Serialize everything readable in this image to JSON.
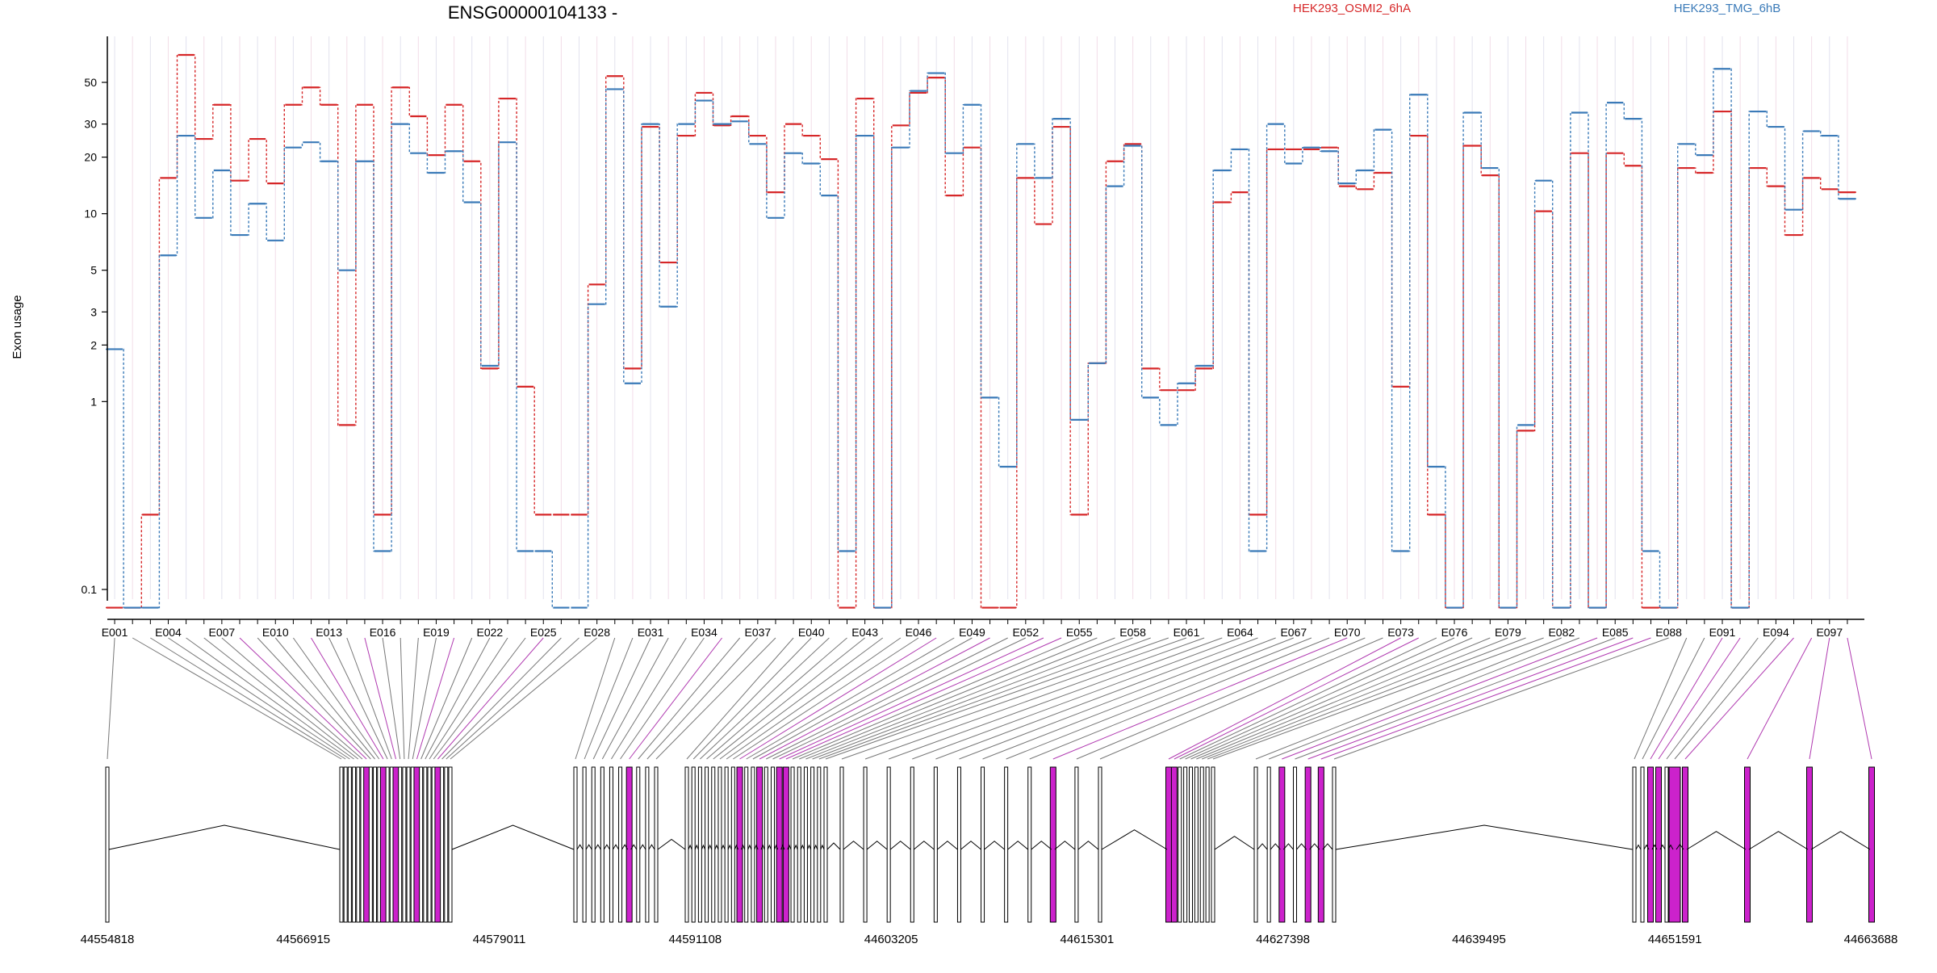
{
  "chart_data": {
    "type": "line",
    "title": "ENSG00000104133 -",
    "ylabel": "Exon usage",
    "yscale": "log",
    "ylim": [
      0.08,
      90
    ],
    "y_ticks": [
      0.1,
      1,
      2,
      3,
      5,
      10,
      20,
      30,
      50
    ],
    "y_tick_labels": [
      "0.1",
      "1",
      "2",
      "3",
      "5",
      "10",
      "20",
      "30",
      "50"
    ],
    "x_tick_labels": [
      "E001",
      "E004",
      "E007",
      "E010",
      "E013",
      "E016",
      "E019",
      "E022",
      "E025",
      "E028",
      "E031",
      "E034",
      "E037",
      "E040",
      "E043",
      "E046",
      "E049",
      "E052",
      "E055",
      "E058",
      "E061",
      "E064",
      "E067",
      "E070",
      "E073",
      "E076",
      "E079",
      "E082",
      "E085",
      "E088",
      "E091",
      "E094",
      "E097"
    ],
    "legend": [
      {
        "name": "HEK293_OSMI2_6hA",
        "color": "#d62728"
      },
      {
        "name": "HEK293_TMG_6hB",
        "color": "#3a7ab8"
      }
    ],
    "series": [
      {
        "name": "HEK293_OSMI2_6hA",
        "color": "#d62728",
        "values": [
          0.08,
          0.08,
          0.25,
          15.5,
          70,
          25,
          38,
          15,
          25,
          14.5,
          38,
          47,
          38,
          0.75,
          38,
          0.25,
          47,
          33,
          20.5,
          38,
          19,
          1.5,
          41,
          1.2,
          0.25,
          0.25,
          0.25,
          4.2,
          54,
          1.5,
          29,
          5.5,
          26,
          44,
          29.5,
          33,
          26,
          13,
          30,
          26,
          19.5,
          0.08,
          41,
          0.08,
          29.5,
          44,
          53,
          12.5,
          22.5,
          0.08,
          0.08,
          15.5,
          8.8,
          29,
          0.25,
          1.6,
          19,
          23.5,
          1.5,
          1.15,
          1.15,
          1.5,
          11.5,
          13,
          0.25,
          22,
          22,
          22,
          22.5,
          14,
          13.5,
          16.5,
          1.2,
          26,
          0.25,
          0.08,
          23,
          16,
          0.08,
          0.7,
          10.3,
          0.08,
          21,
          0.08,
          21,
          18,
          0.08,
          0.08,
          17.5,
          16.5,
          35,
          0.08,
          17.5,
          14,
          7.7,
          15.5,
          13.5,
          13
        ]
      },
      {
        "name": "HEK293_TMG_6hB",
        "color": "#3a7ab8",
        "values": [
          1.9,
          0.08,
          0.08,
          6,
          26,
          9.5,
          17,
          7.7,
          11.3,
          7.2,
          22.5,
          24,
          19,
          5,
          19,
          0.16,
          30,
          21,
          16.5,
          21.5,
          11.5,
          1.55,
          24,
          0.16,
          0.16,
          0.08,
          0.08,
          3.3,
          46,
          1.25,
          30,
          3.2,
          30,
          40,
          30,
          31,
          23.5,
          9.5,
          21,
          18.5,
          12.5,
          0.16,
          26,
          0.08,
          22.5,
          45,
          56,
          21,
          38,
          1.05,
          0.45,
          23.5,
          15.5,
          32,
          0.8,
          1.6,
          14,
          23,
          1.05,
          0.75,
          1.25,
          1.55,
          17,
          22,
          0.16,
          30,
          18.5,
          22.5,
          21.5,
          14.5,
          17,
          28,
          0.16,
          43,
          0.45,
          0.08,
          34.5,
          17.5,
          0.08,
          0.75,
          15,
          0.08,
          34.5,
          0.08,
          39,
          32,
          0.16,
          0.08,
          23.5,
          20.5,
          59,
          0.08,
          35,
          29,
          10.5,
          27.5,
          26,
          12
        ]
      }
    ]
  },
  "gene_model": {
    "coordinate_labels": [
      "44554818",
      "44566915",
      "44579011",
      "44591108",
      "44603205",
      "44615301",
      "44627398",
      "44639495",
      "44651591",
      "44663688"
    ],
    "exon_count": 98,
    "highlight_color": "#cc22cc"
  }
}
